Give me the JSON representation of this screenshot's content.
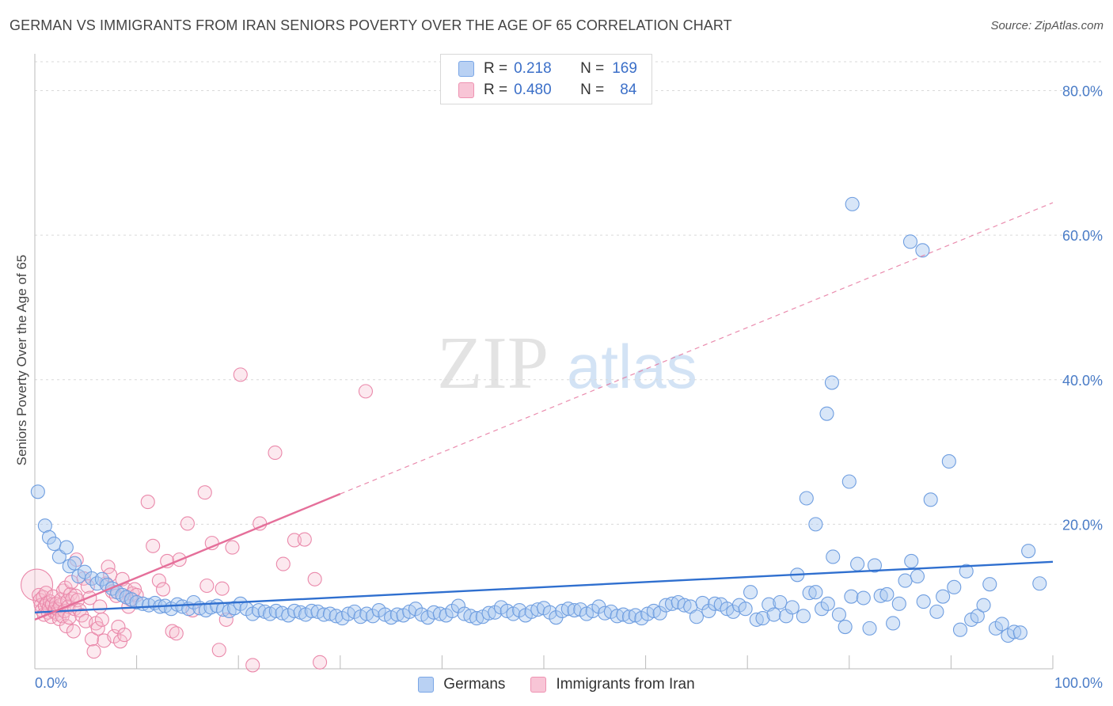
{
  "title": "GERMAN VS IMMIGRANTS FROM IRAN SENIORS POVERTY OVER THE AGE OF 65 CORRELATION CHART",
  "source": "Source: ZipAtlas.com",
  "watermark": {
    "zip": "ZIP",
    "atlas": "atlas"
  },
  "legend_top": {
    "rows": [
      {
        "r_label": "R =",
        "r_value": "0.218",
        "n_label": "N =",
        "n_value": "169",
        "fill": "#b9d1f3",
        "stroke": "#7aa6e6"
      },
      {
        "r_label": "R =",
        "r_value": "0.480",
        "n_label": "N =",
        "n_value": "84",
        "fill": "#f8c5d6",
        "stroke": "#ee93b2"
      }
    ]
  },
  "legend_bottom": [
    {
      "label": "Germans",
      "fill": "#b9d1f3",
      "stroke": "#7aa6e6"
    },
    {
      "label": "Immigrants from Iran",
      "fill": "#f8c5d6",
      "stroke": "#ee93b2"
    }
  ],
  "colors": {
    "blue_fill": "#a9c7f0",
    "blue_stroke": "#6f9ee0",
    "blue_line": "#2f6fcf",
    "pink_fill": "#f6bfd1",
    "pink_stroke": "#ea88aa",
    "pink_line": "#e56f9a",
    "grid": "#d9d9d9",
    "tick_text": "#4a7cc7"
  },
  "chart_data": {
    "type": "scatter",
    "title": "GERMAN VS IMMIGRANTS FROM IRAN SENIORS POVERTY OVER THE AGE OF 65 CORRELATION CHART",
    "xlabel": "",
    "ylabel": "Seniors Poverty Over the Age of 65",
    "xlim": [
      0,
      100
    ],
    "ylim": [
      0,
      84
    ],
    "x_tick_labels": [
      {
        "value": 0,
        "label": "0.0%"
      },
      {
        "value": 100,
        "label": "100.0%"
      }
    ],
    "y_tick_labels": [
      {
        "value": 20,
        "label": "20.0%"
      },
      {
        "value": 40,
        "label": "40.0%"
      },
      {
        "value": 60,
        "label": "60.0%"
      },
      {
        "value": 80,
        "label": "80.0%"
      }
    ],
    "x_minor_ticks": [
      0,
      10,
      20,
      30,
      40,
      50,
      60,
      70,
      80,
      90,
      100
    ],
    "grid": "horizontal dashed",
    "legend_position": "top-center",
    "series": [
      {
        "name": "Germans",
        "R": 0.218,
        "N": 169,
        "trend": {
          "x": [
            0,
            100
          ],
          "y": [
            7.8,
            14.8
          ],
          "style": "solid"
        },
        "points": [
          [
            0.3,
            24.5
          ],
          [
            1.0,
            19.8
          ],
          [
            1.4,
            18.2
          ],
          [
            1.9,
            17.3
          ],
          [
            2.4,
            15.5
          ],
          [
            3.1,
            16.8
          ],
          [
            3.4,
            14.2
          ],
          [
            3.9,
            14.6
          ],
          [
            4.3,
            12.8
          ],
          [
            4.9,
            13.4
          ],
          [
            5.6,
            12.5
          ],
          [
            6.1,
            11.8
          ],
          [
            6.6,
            12.4
          ],
          [
            7.1,
            11.6
          ],
          [
            7.6,
            11.1
          ],
          [
            8.1,
            10.6
          ],
          [
            8.6,
            10.2
          ],
          [
            9.0,
            9.9
          ],
          [
            9.5,
            9.6
          ],
          [
            10.0,
            9.2
          ],
          [
            10.6,
            9.0
          ],
          [
            11.2,
            8.8
          ],
          [
            11.8,
            9.1
          ],
          [
            12.3,
            8.6
          ],
          [
            12.8,
            8.7
          ],
          [
            13.4,
            8.3
          ],
          [
            14.0,
            8.9
          ],
          [
            14.5,
            8.6
          ],
          [
            15.1,
            8.3
          ],
          [
            15.6,
            9.2
          ],
          [
            16.2,
            8.4
          ],
          [
            16.8,
            8.1
          ],
          [
            17.3,
            8.5
          ],
          [
            17.9,
            8.7
          ],
          [
            18.5,
            8.2
          ],
          [
            19.1,
            8.0
          ],
          [
            19.6,
            8.4
          ],
          [
            20.2,
            9.0
          ],
          [
            20.8,
            8.3
          ],
          [
            21.4,
            7.6
          ],
          [
            22.0,
            8.1
          ],
          [
            22.6,
            7.9
          ],
          [
            23.1,
            7.6
          ],
          [
            23.7,
            8.0
          ],
          [
            24.3,
            7.7
          ],
          [
            24.9,
            7.4
          ],
          [
            25.5,
            8.0
          ],
          [
            26.1,
            7.8
          ],
          [
            26.6,
            7.5
          ],
          [
            27.2,
            8.0
          ],
          [
            27.8,
            7.9
          ],
          [
            28.4,
            7.5
          ],
          [
            29.0,
            7.6
          ],
          [
            29.6,
            7.3
          ],
          [
            30.2,
            7.0
          ],
          [
            30.8,
            7.6
          ],
          [
            31.4,
            7.9
          ],
          [
            32.0,
            7.2
          ],
          [
            32.6,
            7.6
          ],
          [
            33.2,
            7.3
          ],
          [
            33.8,
            8.1
          ],
          [
            34.4,
            7.5
          ],
          [
            35.0,
            7.1
          ],
          [
            35.6,
            7.5
          ],
          [
            36.2,
            7.4
          ],
          [
            36.8,
            7.9
          ],
          [
            37.4,
            8.3
          ],
          [
            38.0,
            7.5
          ],
          [
            38.6,
            7.1
          ],
          [
            39.2,
            7.8
          ],
          [
            39.8,
            7.6
          ],
          [
            40.4,
            7.4
          ],
          [
            41.0,
            8.0
          ],
          [
            41.6,
            8.7
          ],
          [
            42.2,
            7.6
          ],
          [
            42.8,
            7.3
          ],
          [
            43.4,
            7.0
          ],
          [
            44.0,
            7.2
          ],
          [
            44.6,
            7.7
          ],
          [
            45.2,
            7.8
          ],
          [
            45.8,
            8.5
          ],
          [
            46.4,
            8.0
          ],
          [
            47.0,
            7.6
          ],
          [
            47.6,
            8.1
          ],
          [
            48.2,
            7.4
          ],
          [
            48.8,
            7.9
          ],
          [
            49.4,
            8.2
          ],
          [
            50.0,
            8.4
          ],
          [
            50.6,
            7.8
          ],
          [
            51.2,
            7.1
          ],
          [
            51.8,
            8.0
          ],
          [
            52.4,
            8.3
          ],
          [
            53.0,
            8.1
          ],
          [
            53.6,
            8.2
          ],
          [
            54.2,
            7.6
          ],
          [
            54.8,
            8.0
          ],
          [
            55.4,
            8.6
          ],
          [
            56.0,
            7.7
          ],
          [
            56.6,
            7.9
          ],
          [
            57.2,
            7.3
          ],
          [
            57.8,
            7.5
          ],
          [
            58.4,
            7.2
          ],
          [
            59.0,
            7.4
          ],
          [
            59.6,
            7.0
          ],
          [
            60.2,
            7.6
          ],
          [
            60.8,
            8.0
          ],
          [
            61.4,
            7.7
          ],
          [
            62.0,
            8.8
          ],
          [
            62.6,
            9.0
          ],
          [
            63.2,
            9.2
          ],
          [
            63.8,
            8.8
          ],
          [
            64.4,
            8.6
          ],
          [
            65.0,
            7.2
          ],
          [
            65.6,
            9.1
          ],
          [
            66.2,
            8.0
          ],
          [
            66.8,
            9.0
          ],
          [
            67.4,
            8.9
          ],
          [
            68.0,
            8.3
          ],
          [
            68.6,
            7.9
          ],
          [
            69.2,
            8.8
          ],
          [
            69.8,
            8.3
          ],
          [
            70.3,
            10.6
          ],
          [
            70.9,
            6.8
          ],
          [
            71.5,
            7.0
          ],
          [
            72.1,
            8.9
          ],
          [
            72.6,
            7.5
          ],
          [
            73.2,
            9.2
          ],
          [
            73.8,
            7.3
          ],
          [
            74.4,
            8.5
          ],
          [
            74.9,
            13.0
          ],
          [
            75.5,
            7.3
          ],
          [
            76.1,
            10.5
          ],
          [
            76.7,
            10.6
          ],
          [
            77.3,
            8.3
          ],
          [
            77.9,
            9.0
          ],
          [
            78.4,
            15.5
          ],
          [
            79.0,
            7.5
          ],
          [
            79.6,
            5.8
          ],
          [
            80.2,
            10.0
          ],
          [
            80.8,
            14.5
          ],
          [
            81.4,
            9.8
          ],
          [
            82.0,
            5.6
          ],
          [
            82.5,
            14.3
          ],
          [
            83.1,
            10.1
          ],
          [
            83.7,
            10.3
          ],
          [
            84.3,
            6.3
          ],
          [
            84.9,
            9.0
          ],
          [
            85.5,
            12.2
          ],
          [
            86.1,
            14.9
          ],
          [
            86.7,
            12.8
          ],
          [
            87.3,
            9.3
          ],
          [
            88.0,
            23.4
          ],
          [
            88.6,
            7.9
          ],
          [
            89.2,
            10.0
          ],
          [
            89.8,
            28.7
          ],
          [
            90.3,
            11.3
          ],
          [
            90.9,
            5.4
          ],
          [
            91.5,
            13.5
          ],
          [
            92.0,
            6.8
          ],
          [
            92.6,
            7.3
          ],
          [
            93.2,
            8.8
          ],
          [
            93.8,
            11.7
          ],
          [
            94.4,
            5.6
          ],
          [
            95.0,
            6.2
          ],
          [
            95.6,
            4.6
          ],
          [
            96.2,
            5.1
          ],
          [
            96.8,
            5.0
          ],
          [
            97.6,
            16.3
          ],
          [
            98.7,
            11.8
          ]
        ],
        "outliers": [
          [
            80.3,
            64.3
          ],
          [
            86.0,
            59.1
          ],
          [
            87.2,
            57.9
          ],
          [
            78.3,
            39.6
          ],
          [
            77.8,
            35.3
          ],
          [
            80.0,
            25.9
          ],
          [
            76.7,
            20.0
          ],
          [
            75.8,
            23.6
          ]
        ]
      },
      {
        "name": "Immigrants from Iran",
        "R": 0.48,
        "N": 84,
        "trend": {
          "x": [
            0,
            30
          ],
          "y": [
            6.8,
            24.2
          ],
          "style": "solid",
          "extension": {
            "x": [
              30,
              100
            ],
            "y": [
              24.2,
              64.5
            ],
            "style": "dashed"
          }
        },
        "points": [
          [
            0.2,
            11.6
          ],
          [
            0.4,
            10.2
          ],
          [
            0.5,
            9.5
          ],
          [
            0.6,
            8.8
          ],
          [
            0.7,
            8.1
          ],
          [
            0.8,
            9.9
          ],
          [
            0.9,
            7.5
          ],
          [
            1.0,
            8.7
          ],
          [
            1.1,
            10.5
          ],
          [
            1.2,
            9.1
          ],
          [
            1.3,
            7.8
          ],
          [
            1.4,
            8.5
          ],
          [
            1.5,
            9.3
          ],
          [
            1.6,
            7.2
          ],
          [
            1.7,
            8.9
          ],
          [
            1.8,
            10.0
          ],
          [
            1.9,
            7.9
          ],
          [
            2.0,
            8.4
          ],
          [
            2.1,
            9.0
          ],
          [
            2.2,
            7.6
          ],
          [
            2.3,
            8.2
          ],
          [
            2.4,
            6.9
          ],
          [
            2.5,
            8.8
          ],
          [
            2.6,
            9.6
          ],
          [
            2.7,
            7.3
          ],
          [
            2.8,
            10.8
          ],
          [
            2.9,
            8.0
          ],
          [
            3.0,
            11.2
          ],
          [
            3.1,
            5.9
          ],
          [
            3.2,
            9.4
          ],
          [
            3.3,
            8.6
          ],
          [
            3.4,
            7.1
          ],
          [
            3.5,
            10.3
          ],
          [
            3.6,
            12.0
          ],
          [
            3.7,
            9.7
          ],
          [
            3.8,
            5.2
          ],
          [
            3.9,
            8.3
          ],
          [
            4.0,
            10.1
          ],
          [
            4.1,
            15.1
          ],
          [
            4.2,
            9.5
          ],
          [
            4.4,
            8.1
          ],
          [
            4.6,
            7.4
          ],
          [
            4.8,
            12.5
          ],
          [
            5.0,
            6.6
          ],
          [
            5.2,
            11.4
          ],
          [
            5.4,
            9.8
          ],
          [
            5.6,
            4.1
          ],
          [
            5.8,
            2.4
          ],
          [
            6.0,
            6.3
          ],
          [
            6.2,
            5.6
          ],
          [
            6.4,
            8.6
          ],
          [
            6.6,
            6.8
          ],
          [
            6.8,
            3.9
          ],
          [
            7.0,
            11.8
          ],
          [
            7.2,
            14.1
          ],
          [
            7.4,
            13.0
          ],
          [
            7.6,
            10.7
          ],
          [
            7.8,
            4.5
          ],
          [
            8.0,
            10.1
          ],
          [
            8.2,
            5.8
          ],
          [
            8.4,
            3.8
          ],
          [
            8.6,
            12.4
          ],
          [
            8.8,
            4.7
          ],
          [
            9.0,
            10.9
          ],
          [
            9.2,
            8.6
          ],
          [
            9.4,
            9.6
          ],
          [
            9.6,
            10.4
          ],
          [
            9.8,
            11.0
          ],
          [
            10.0,
            10.2
          ],
          [
            11.1,
            23.1
          ],
          [
            11.6,
            17.0
          ],
          [
            12.2,
            12.2
          ],
          [
            12.6,
            11.0
          ],
          [
            13.0,
            14.9
          ],
          [
            13.5,
            5.2
          ],
          [
            13.9,
            4.9
          ],
          [
            14.2,
            15.1
          ],
          [
            15.0,
            20.1
          ],
          [
            15.5,
            8.1
          ],
          [
            16.7,
            24.4
          ],
          [
            16.9,
            11.5
          ],
          [
            17.4,
            17.4
          ],
          [
            18.1,
            2.6
          ],
          [
            18.4,
            11.1
          ],
          [
            18.8,
            6.8
          ],
          [
            19.4,
            16.8
          ],
          [
            20.2,
            40.7
          ],
          [
            21.4,
            0.5
          ],
          [
            22.1,
            20.1
          ],
          [
            23.6,
            29.9
          ],
          [
            24.4,
            14.5
          ],
          [
            25.5,
            17.8
          ],
          [
            26.5,
            17.9
          ],
          [
            27.5,
            12.4
          ],
          [
            28.0,
            0.9
          ],
          [
            32.5,
            38.4
          ]
        ]
      }
    ]
  }
}
